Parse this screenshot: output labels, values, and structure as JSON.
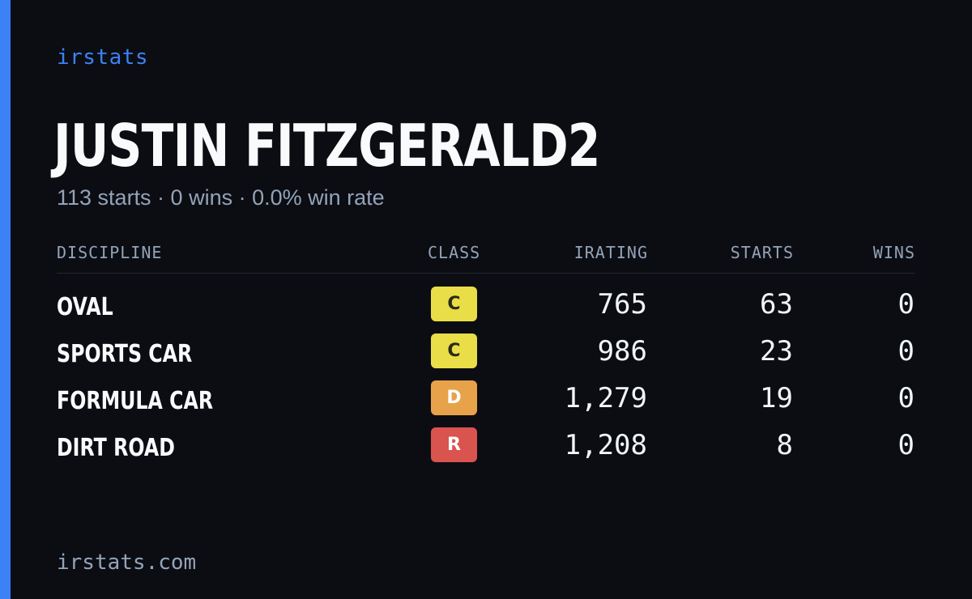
{
  "brand": "irstats",
  "driver": {
    "name": "JUSTIN FITZGERALD2",
    "summary": "113 starts · 0 wins · 0.0% win rate"
  },
  "table": {
    "headers": [
      "DISCIPLINE",
      "CLASS",
      "IRATING",
      "STARTS",
      "WINS"
    ],
    "rows": [
      {
        "discipline": "OVAL",
        "class": "C",
        "irating": "765",
        "starts": "63",
        "wins": "0"
      },
      {
        "discipline": "SPORTS CAR",
        "class": "C",
        "irating": "986",
        "starts": "23",
        "wins": "0"
      },
      {
        "discipline": "FORMULA CAR",
        "class": "D",
        "irating": "1,279",
        "starts": "19",
        "wins": "0"
      },
      {
        "discipline": "DIRT ROAD",
        "class": "R",
        "irating": "1,208",
        "starts": "8",
        "wins": "0"
      }
    ]
  },
  "class_colors": {
    "C": {
      "bg": "#e9dd48",
      "fg": "#2b2a14"
    },
    "D": {
      "bg": "#e7a24a",
      "fg": "#ffffff"
    },
    "R": {
      "bg": "#d9534f",
      "fg": "#ffffff"
    }
  },
  "theme": {
    "accent": "#3b82f6",
    "background": "#0b0d13"
  },
  "footer": "irstats.com"
}
